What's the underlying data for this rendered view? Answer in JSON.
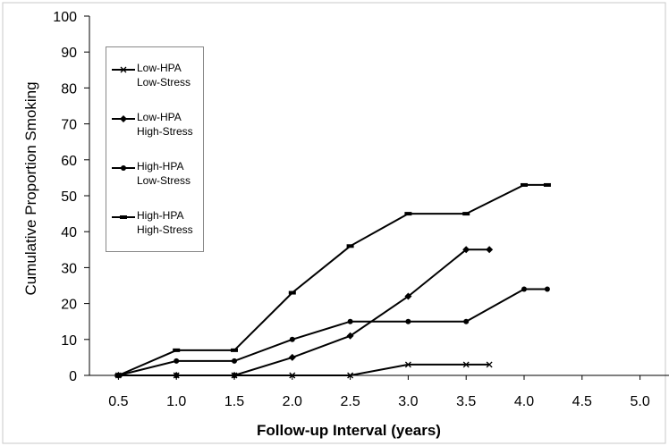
{
  "chart_data": {
    "type": "line",
    "xlabel": "Follow-up Interval (years)",
    "ylabel": "Cumulative Proportion Smoking",
    "xlim": [
      0.25,
      5.25
    ],
    "ylim": [
      0,
      100
    ],
    "x_ticks": [
      "0.5",
      "1.0",
      "1.5",
      "2.0",
      "2.5",
      "3.0",
      "3.5",
      "4.0",
      "4.5",
      "5.0"
    ],
    "y_ticks": [
      "0",
      "10",
      "20",
      "30",
      "40",
      "50",
      "60",
      "70",
      "80",
      "90",
      "100"
    ],
    "grid": false,
    "legend_position": "top-left",
    "series": [
      {
        "name": "Low-HPA\nLow-Stress",
        "marker": "x",
        "points": [
          [
            0.5,
            0
          ],
          [
            1.0,
            0
          ],
          [
            1.5,
            0
          ],
          [
            2.0,
            0
          ],
          [
            2.5,
            0
          ],
          [
            3.0,
            3
          ],
          [
            3.5,
            3
          ],
          [
            3.7,
            3
          ]
        ]
      },
      {
        "name": "Low-HPA\nHigh-Stress",
        "marker": "diamond",
        "points": [
          [
            0.5,
            0
          ],
          [
            1.0,
            0
          ],
          [
            1.5,
            0
          ],
          [
            2.0,
            5
          ],
          [
            2.5,
            11
          ],
          [
            3.0,
            22
          ],
          [
            3.5,
            35
          ],
          [
            3.7,
            35
          ]
        ]
      },
      {
        "name": "High-HPA\nLow-Stress",
        "marker": "circle",
        "points": [
          [
            0.5,
            0
          ],
          [
            1.0,
            4
          ],
          [
            1.5,
            4
          ],
          [
            2.0,
            10
          ],
          [
            2.5,
            15
          ],
          [
            3.0,
            15
          ],
          [
            3.5,
            15
          ],
          [
            4.0,
            24
          ],
          [
            4.2,
            24
          ]
        ]
      },
      {
        "name": "High-HPA\nHigh-Stress",
        "marker": "dash",
        "points": [
          [
            0.5,
            0
          ],
          [
            1.0,
            7
          ],
          [
            1.5,
            7
          ],
          [
            2.0,
            23
          ],
          [
            2.5,
            36
          ],
          [
            3.0,
            45
          ],
          [
            3.5,
            45
          ],
          [
            4.0,
            53
          ],
          [
            4.2,
            53
          ]
        ]
      }
    ]
  }
}
